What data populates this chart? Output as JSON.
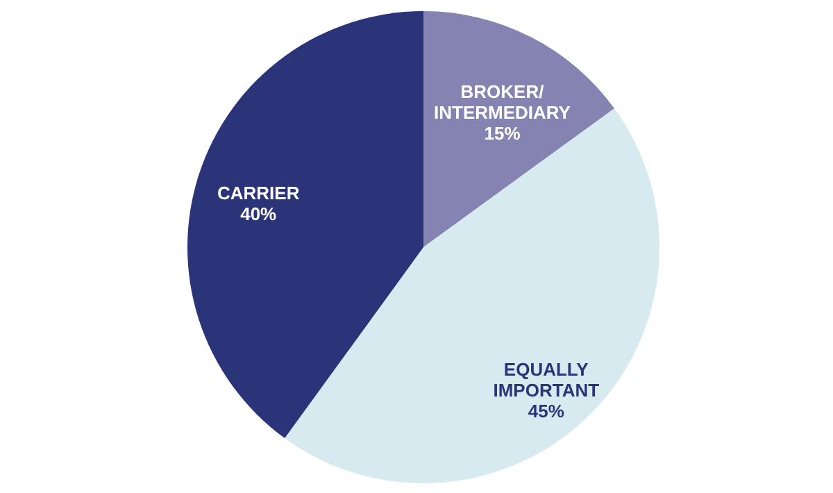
{
  "chart_data": {
    "type": "pie",
    "categories": [
      "BROKER/ INTERMEDIARY",
      "EQUALLY IMPORTANT",
      "CARRIER"
    ],
    "values": [
      15,
      45,
      40
    ],
    "value_labels": [
      "15%",
      "45%",
      "40%"
    ],
    "colors": [
      "#8583b1",
      "#d6eaf0",
      "#2b3479"
    ]
  }
}
